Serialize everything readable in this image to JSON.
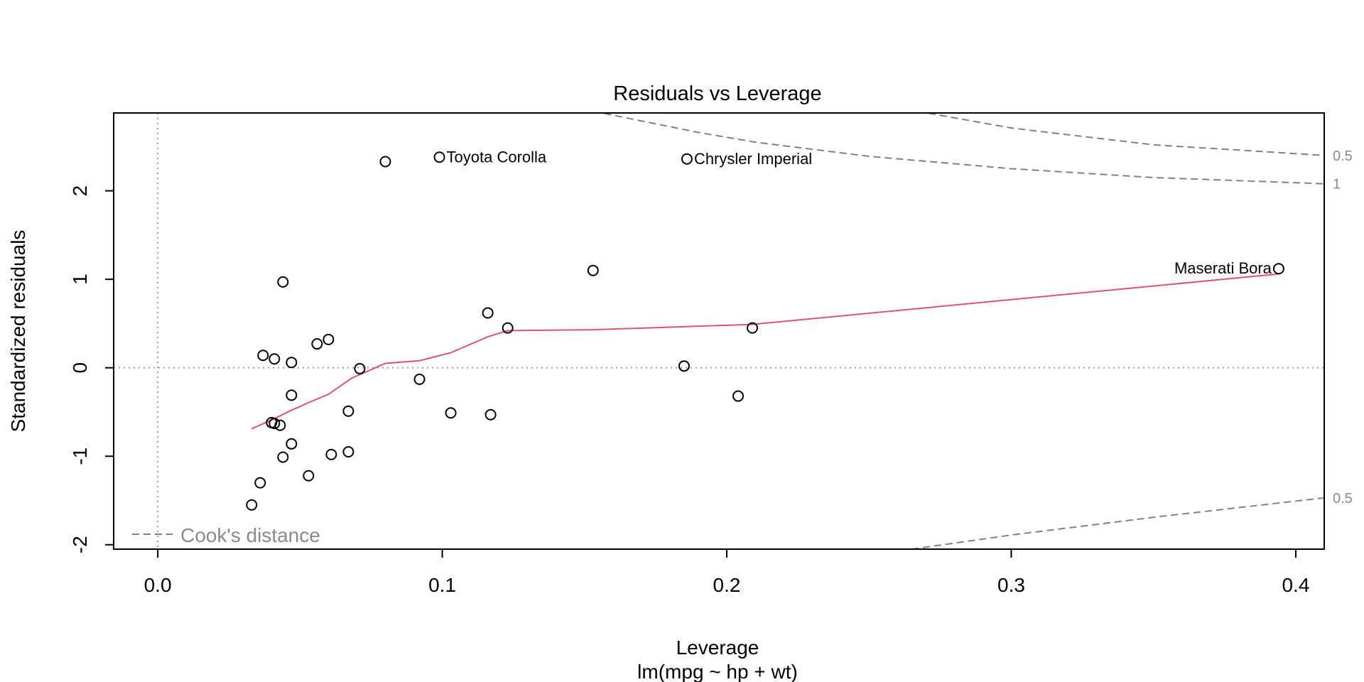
{
  "chart_data": {
    "type": "scatter",
    "title": "Residuals vs Leverage",
    "xlabel": "Leverage",
    "subtitle": "lm(mpg ~ hp + wt)",
    "ylabel": "Standardized residuals",
    "xlim": [
      -0.0155,
      0.41
    ],
    "ylim": [
      -2.05,
      2.88
    ],
    "xticks": [
      0.0,
      0.1,
      0.2,
      0.3,
      0.4
    ],
    "xtick_labels": [
      "0.0",
      "0.1",
      "0.2",
      "0.3",
      "0.4"
    ],
    "yticks": [
      -2,
      -1,
      0,
      1,
      2
    ],
    "ytick_labels": [
      "-2",
      "-1",
      "0",
      "1",
      "2"
    ],
    "points": [
      {
        "x": 0.08,
        "y": 2.33
      },
      {
        "x": 0.099,
        "y": 2.38
      },
      {
        "x": 0.186,
        "y": 2.36
      },
      {
        "x": 0.153,
        "y": 1.1
      },
      {
        "x": 0.394,
        "y": 1.12
      },
      {
        "x": 0.044,
        "y": 0.97
      },
      {
        "x": 0.116,
        "y": 0.62
      },
      {
        "x": 0.123,
        "y": 0.45
      },
      {
        "x": 0.209,
        "y": 0.45
      },
      {
        "x": 0.06,
        "y": 0.32
      },
      {
        "x": 0.056,
        "y": 0.27
      },
      {
        "x": 0.037,
        "y": 0.14
      },
      {
        "x": 0.041,
        "y": 0.1
      },
      {
        "x": 0.047,
        "y": 0.06
      },
      {
        "x": 0.071,
        "y": -0.01
      },
      {
        "x": 0.185,
        "y": 0.02
      },
      {
        "x": 0.092,
        "y": -0.13
      },
      {
        "x": 0.047,
        "y": -0.31
      },
      {
        "x": 0.204,
        "y": -0.32
      },
      {
        "x": 0.067,
        "y": -0.49
      },
      {
        "x": 0.103,
        "y": -0.51
      },
      {
        "x": 0.117,
        "y": -0.53
      },
      {
        "x": 0.04,
        "y": -0.62
      },
      {
        "x": 0.041,
        "y": -0.63
      },
      {
        "x": 0.043,
        "y": -0.65
      },
      {
        "x": 0.047,
        "y": -0.86
      },
      {
        "x": 0.067,
        "y": -0.95
      },
      {
        "x": 0.061,
        "y": -0.98
      },
      {
        "x": 0.044,
        "y": -1.01
      },
      {
        "x": 0.053,
        "y": -1.22
      },
      {
        "x": 0.036,
        "y": -1.3
      },
      {
        "x": 0.033,
        "y": -1.55
      }
    ],
    "labeled_points": [
      {
        "label": "Toyota Corolla",
        "x": 0.099,
        "y": 2.38,
        "side": "right"
      },
      {
        "label": "Chrysler Imperial",
        "x": 0.186,
        "y": 2.36,
        "side": "right"
      },
      {
        "label": "Maserati Bora",
        "x": 0.394,
        "y": 1.12,
        "side": "left"
      }
    ],
    "smoother": {
      "color": "#DF536B",
      "x": [
        0.033,
        0.04,
        0.047,
        0.054,
        0.06,
        0.068,
        0.08,
        0.092,
        0.103,
        0.116,
        0.123,
        0.153,
        0.209,
        0.394
      ],
      "y": [
        -0.69,
        -0.59,
        -0.48,
        -0.38,
        -0.3,
        -0.12,
        0.05,
        0.08,
        0.17,
        0.35,
        0.42,
        0.43,
        0.49,
        1.06
      ]
    },
    "cooks_distance": {
      "legend": "Cook's distance",
      "levels": [
        {
          "label": "1",
          "x": [
            0.153,
            0.17,
            0.19,
            0.21,
            0.25,
            0.3,
            0.35,
            0.41
          ],
          "y": [
            2.9,
            2.79,
            2.66,
            2.55,
            2.39,
            2.25,
            2.15,
            2.08
          ]
        },
        {
          "label": "0.5",
          "x": [
            0.267,
            0.3,
            0.35,
            0.41
          ],
          "y": [
            2.9,
            2.71,
            2.52,
            2.4
          ]
        },
        {
          "label": "0.5",
          "x": [
            0.265,
            0.3,
            0.35,
            0.41
          ],
          "y": [
            -2.05,
            -1.89,
            -1.69,
            -1.47
          ]
        }
      ]
    }
  }
}
